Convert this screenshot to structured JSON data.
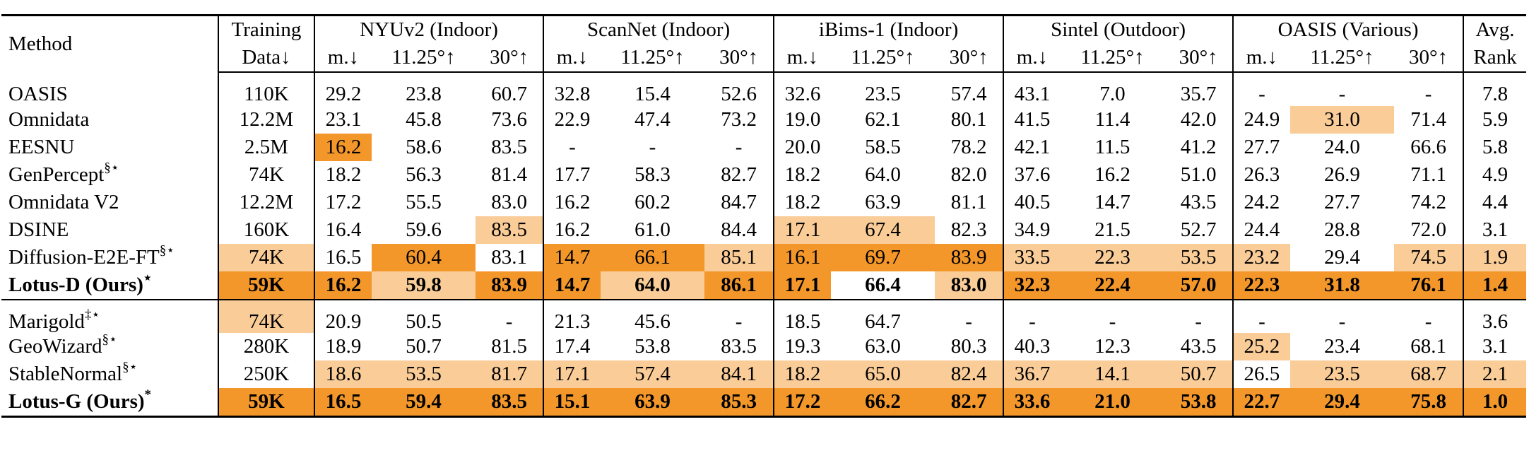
{
  "header": {
    "method": "Method",
    "training_data": [
      "Training",
      "Data↓"
    ],
    "datasets": [
      "NYUv2 (Indoor)",
      "ScanNet (Indoor)",
      "iBims-1 (Indoor)",
      "Sintel (Outdoor)",
      "OASIS (Various)"
    ],
    "metrics": [
      "m.↓",
      "11.25°↑",
      "30°↑"
    ],
    "avg_rank": [
      "Avg.",
      "Rank"
    ]
  },
  "groups": [
    {
      "rows": [
        {
          "method": "OASIS",
          "sup": "",
          "bold": false,
          "train": "110K",
          "values": [
            "29.2",
            "23.8",
            "60.7",
            "32.8",
            "15.4",
            "52.6",
            "32.6",
            "23.5",
            "57.4",
            "43.1",
            "7.0",
            "35.7",
            "-",
            "-",
            "-"
          ],
          "rank": "7.8",
          "hl": [
            0,
            0,
            0,
            0,
            0,
            0,
            0,
            0,
            0,
            0,
            0,
            0,
            0,
            0,
            0,
            0,
            0
          ]
        },
        {
          "method": "Omnidata",
          "sup": "",
          "bold": false,
          "train": "12.2M",
          "values": [
            "23.1",
            "45.8",
            "73.6",
            "22.9",
            "47.4",
            "73.2",
            "19.0",
            "62.1",
            "80.1",
            "41.5",
            "11.4",
            "42.0",
            "24.9",
            "31.0",
            "71.4"
          ],
          "rank": "5.9",
          "hl": [
            0,
            0,
            0,
            0,
            0,
            0,
            0,
            0,
            0,
            0,
            0,
            0,
            0,
            0,
            2,
            0,
            0
          ]
        },
        {
          "method": "EESNU",
          "sup": "",
          "bold": false,
          "train": "2.5M",
          "values": [
            "16.2",
            "58.6",
            "83.5",
            "-",
            "-",
            "-",
            "20.0",
            "58.5",
            "78.2",
            "42.1",
            "11.5",
            "41.2",
            "27.7",
            "24.0",
            "66.6"
          ],
          "rank": "5.8",
          "hl": [
            0,
            1,
            0,
            0,
            0,
            0,
            0,
            0,
            0,
            0,
            0,
            0,
            0,
            0,
            0,
            0,
            0
          ]
        },
        {
          "method": "GenPercept",
          "sup": "§⋆",
          "bold": false,
          "train": "74K",
          "values": [
            "18.2",
            "56.3",
            "81.4",
            "17.7",
            "58.3",
            "82.7",
            "18.2",
            "64.0",
            "82.0",
            "37.6",
            "16.2",
            "51.0",
            "26.3",
            "26.9",
            "71.1"
          ],
          "rank": "4.9",
          "hl": [
            0,
            0,
            0,
            0,
            0,
            0,
            0,
            0,
            0,
            0,
            0,
            0,
            0,
            0,
            0,
            0,
            0
          ]
        },
        {
          "method": "Omnidata V2",
          "sup": "",
          "bold": false,
          "train": "12.2M",
          "values": [
            "17.2",
            "55.5",
            "83.0",
            "16.2",
            "60.2",
            "84.7",
            "18.2",
            "63.9",
            "81.1",
            "40.5",
            "14.7",
            "43.5",
            "24.2",
            "27.7",
            "74.2"
          ],
          "rank": "4.4",
          "hl": [
            0,
            0,
            0,
            0,
            0,
            0,
            0,
            0,
            0,
            0,
            0,
            0,
            0,
            0,
            0,
            0,
            0
          ]
        },
        {
          "method": "DSINE",
          "sup": "",
          "bold": false,
          "train": "160K",
          "values": [
            "16.4",
            "59.6",
            "83.5",
            "16.2",
            "61.0",
            "84.4",
            "17.1",
            "67.4",
            "82.3",
            "34.9",
            "21.5",
            "52.7",
            "24.4",
            "28.8",
            "72.0"
          ],
          "rank": "3.1",
          "hl": [
            0,
            0,
            0,
            2,
            0,
            0,
            0,
            2,
            2,
            0,
            0,
            0,
            0,
            0,
            0,
            0,
            0
          ]
        },
        {
          "method": "Diffusion-E2E-FT",
          "sup": "§⋆",
          "bold": false,
          "train": "74K",
          "values": [
            "16.5",
            "60.4",
            "83.1",
            "14.7",
            "66.1",
            "85.1",
            "16.1",
            "69.7",
            "83.9",
            "33.5",
            "22.3",
            "53.5",
            "23.2",
            "29.4",
            "74.5"
          ],
          "rank": "1.9",
          "hl": [
            2,
            0,
            1,
            0,
            1,
            1,
            2,
            1,
            1,
            1,
            2,
            2,
            2,
            2,
            0,
            2,
            2
          ]
        },
        {
          "method": "Lotus-D (Ours)",
          "sup": "⋆",
          "bold": true,
          "train": "59K",
          "values": [
            "16.2",
            "59.8",
            "83.9",
            "14.7",
            "64.0",
            "86.1",
            "17.1",
            "66.4",
            "83.0",
            "32.3",
            "22.4",
            "57.0",
            "22.3",
            "31.8",
            "76.1"
          ],
          "rank": "1.4",
          "hl": [
            1,
            1,
            2,
            1,
            1,
            2,
            1,
            1,
            0,
            2,
            1,
            1,
            1,
            1,
            1,
            1,
            1
          ]
        }
      ]
    },
    {
      "rows": [
        {
          "method": "Marigold",
          "sup": "‡⋆",
          "bold": false,
          "train": "74K",
          "values": [
            "20.9",
            "50.5",
            "-",
            "21.3",
            "45.6",
            "-",
            "18.5",
            "64.7",
            "-",
            "-",
            "-",
            "-",
            "-",
            "-",
            "-"
          ],
          "rank": "3.6",
          "hl": [
            2,
            0,
            0,
            0,
            0,
            0,
            0,
            0,
            0,
            0,
            0,
            0,
            0,
            0,
            0,
            0,
            0
          ]
        },
        {
          "method": "GeoWizard",
          "sup": "§⋆",
          "bold": false,
          "train": "280K",
          "values": [
            "18.9",
            "50.7",
            "81.5",
            "17.4",
            "53.8",
            "83.5",
            "19.3",
            "63.0",
            "80.3",
            "40.3",
            "12.3",
            "43.5",
            "25.2",
            "23.4",
            "68.1"
          ],
          "rank": "3.1",
          "hl": [
            0,
            0,
            0,
            0,
            0,
            0,
            0,
            0,
            0,
            0,
            0,
            0,
            0,
            2,
            0,
            0,
            0
          ]
        },
        {
          "method": "StableNormal",
          "sup": "§⋆",
          "bold": false,
          "train": "250K",
          "values": [
            "18.6",
            "53.5",
            "81.7",
            "17.1",
            "57.4",
            "84.1",
            "18.2",
            "65.0",
            "82.4",
            "36.7",
            "14.1",
            "50.7",
            "26.5",
            "23.5",
            "68.7"
          ],
          "rank": "2.1",
          "hl": [
            0,
            2,
            2,
            2,
            2,
            2,
            2,
            2,
            2,
            2,
            2,
            2,
            2,
            0,
            2,
            2,
            2
          ]
        },
        {
          "method": "Lotus-G (Ours)",
          "sup": "*",
          "bold": true,
          "train": "59K",
          "values": [
            "16.5",
            "59.4",
            "83.5",
            "15.1",
            "63.9",
            "85.3",
            "17.2",
            "66.2",
            "82.7",
            "33.6",
            "21.0",
            "53.8",
            "22.7",
            "29.4",
            "75.8"
          ],
          "rank": "1.0",
          "hl": [
            1,
            1,
            1,
            1,
            1,
            1,
            1,
            1,
            1,
            1,
            1,
            1,
            1,
            1,
            1,
            1,
            1
          ]
        }
      ]
    }
  ]
}
